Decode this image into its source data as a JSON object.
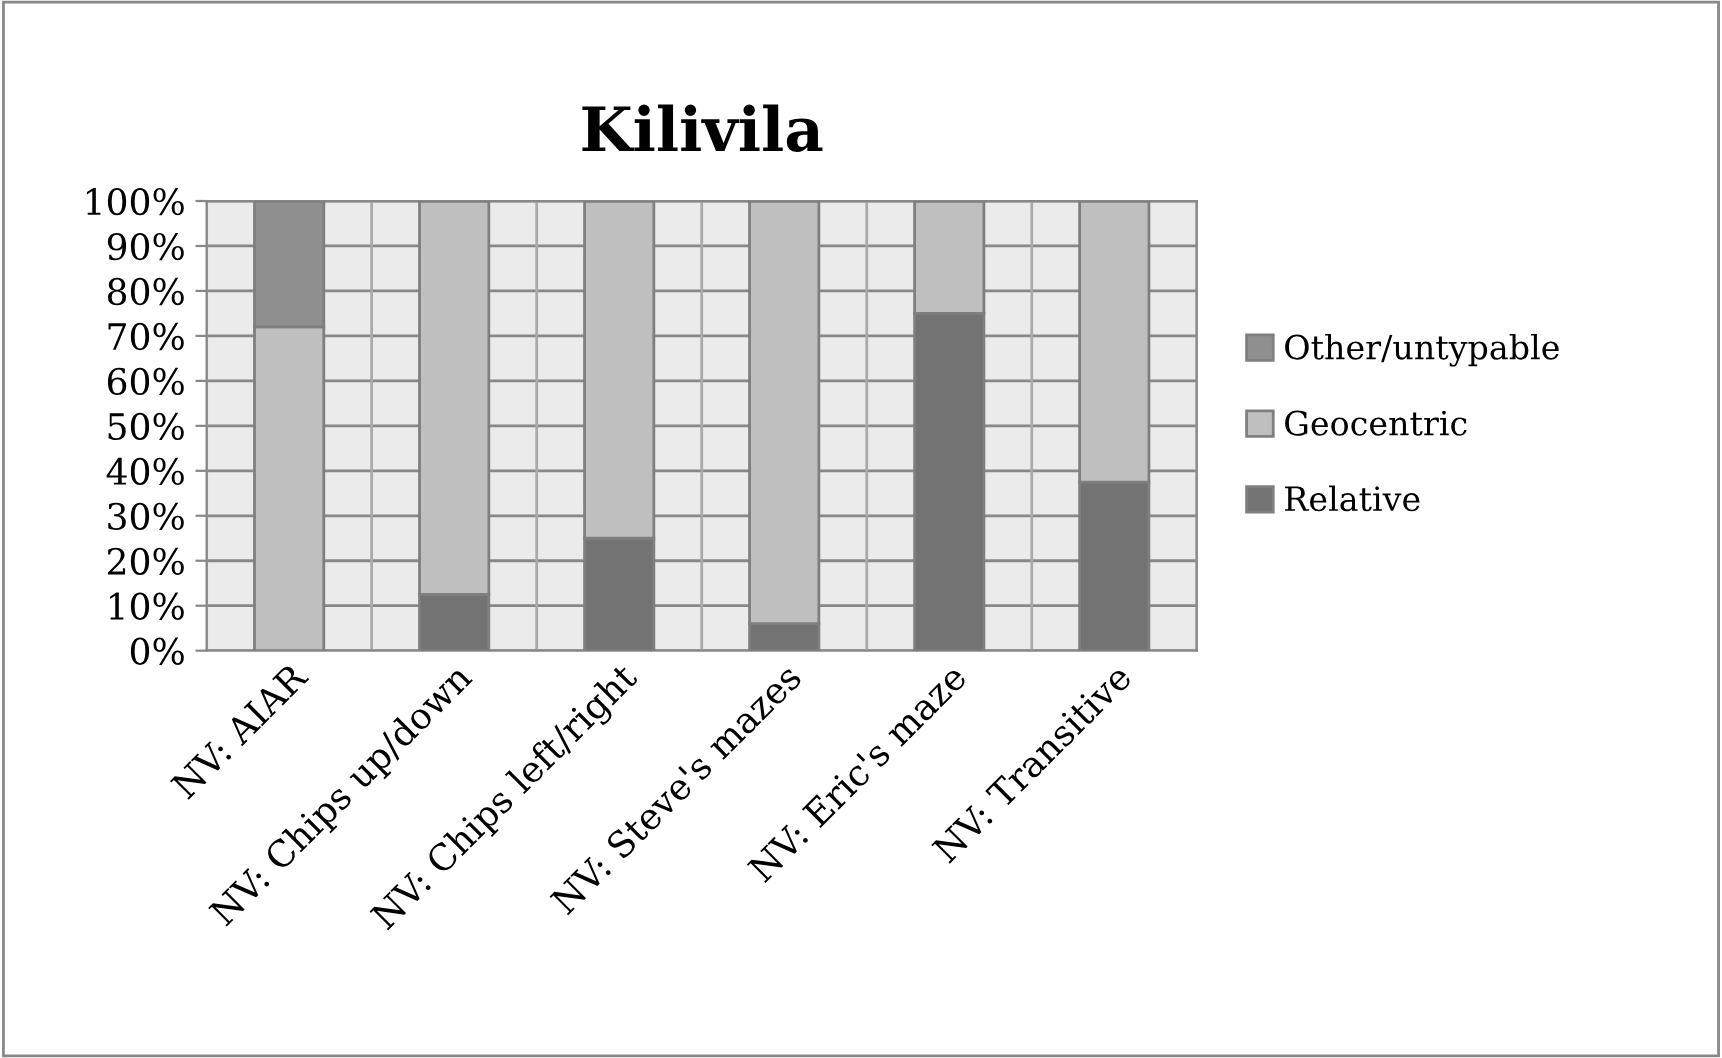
{
  "chart_data": {
    "type": "bar",
    "title": "Kilivila",
    "stacked": true,
    "categories": [
      "NV: AIAR",
      "NV: Chips up/down",
      "NV: Chips left/right",
      "NV: Steve's mazes",
      "NV: Eric's maze",
      "NV: Transitive"
    ],
    "series": [
      {
        "name": "Relative",
        "color": "#737373",
        "values": [
          0,
          12.5,
          25,
          6,
          75,
          37.5
        ]
      },
      {
        "name": "Geocentric",
        "color": "#bfbfbf",
        "values": [
          72,
          87.5,
          75,
          94,
          25,
          62.5
        ]
      },
      {
        "name": "Other/untypable",
        "color": "#8f8f8f",
        "values": [
          28,
          0,
          0,
          0,
          0,
          0
        ]
      }
    ],
    "ylim": [
      0,
      100
    ],
    "yticks": [
      {
        "value": 0,
        "label": "0%"
      },
      {
        "value": 10,
        "label": "10%"
      },
      {
        "value": 20,
        "label": "20%"
      },
      {
        "value": 30,
        "label": "30%"
      },
      {
        "value": 40,
        "label": "40%"
      },
      {
        "value": 50,
        "label": "50%"
      },
      {
        "value": 60,
        "label": "60%"
      },
      {
        "value": 70,
        "label": "70%"
      },
      {
        "value": 80,
        "label": "80%"
      },
      {
        "value": 90,
        "label": "90%"
      },
      {
        "value": 100,
        "label": "100%"
      }
    ],
    "grid": true,
    "legend": "right"
  }
}
